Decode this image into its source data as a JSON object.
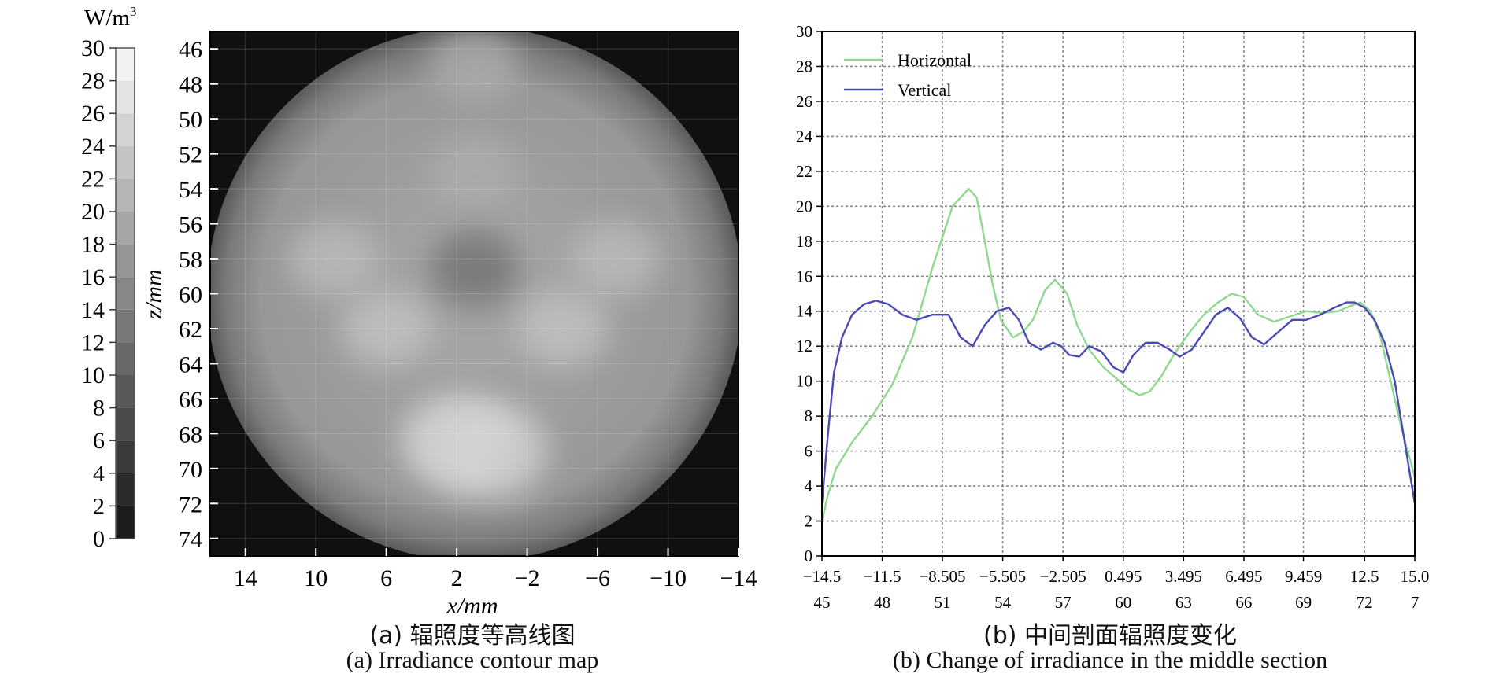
{
  "chart_data": [
    {
      "type": "heatmap",
      "title": "(a) 辐照度等高线图",
      "subtitle": "(a) Irradiance contour map",
      "xlabel": "x/mm",
      "ylabel": "z/mm",
      "xlim": [
        16,
        -14
      ],
      "ylim": [
        45,
        75
      ],
      "x_ticks": [
        14,
        10,
        6,
        2,
        -2,
        -6,
        -10,
        -14
      ],
      "x_tick_labels": [
        "14",
        "10",
        "6",
        "2",
        "−2",
        "−6",
        "−10",
        "−14"
      ],
      "y_ticks": [
        46,
        48,
        50,
        52,
        54,
        56,
        58,
        60,
        62,
        64,
        66,
        68,
        70,
        72,
        74
      ],
      "grid": true,
      "colorbar": {
        "unit_label": "W/m",
        "unit_superscript": "3",
        "range": [
          0,
          30
        ],
        "ticks": [
          0,
          2,
          4,
          6,
          8,
          10,
          12,
          14,
          16,
          18,
          20,
          22,
          24,
          26,
          28,
          30
        ]
      },
      "description_values": {
        "background_level": 1,
        "blobs": [
          {
            "x": 1,
            "z": 60,
            "value": 18
          },
          {
            "x": 1,
            "z": 47,
            "value": 20
          },
          {
            "x": 9,
            "z": 58,
            "value": 22
          },
          {
            "x": -7,
            "z": 58,
            "value": 22
          },
          {
            "x": 6,
            "z": 62,
            "value": 23
          },
          {
            "x": -4,
            "z": 62,
            "value": 23
          },
          {
            "x": 2,
            "z": 68.5,
            "value": 26
          },
          {
            "x": 0,
            "z": 69,
            "value": 25
          },
          {
            "x": 1,
            "z": 53,
            "value": 20
          },
          {
            "x": 1,
            "z": 58.5,
            "value": 12
          }
        ]
      }
    },
    {
      "type": "line",
      "title": "(b) 中间剖面辐照度变化",
      "subtitle": "(b) Change of irradiance in the middle section",
      "xlabel": "",
      "ylabel": "",
      "xlim": [
        -14.5,
        15.0
      ],
      "ylim": [
        0,
        30
      ],
      "y_ticks": [
        0,
        2,
        4,
        6,
        8,
        10,
        12,
        14,
        16,
        18,
        20,
        22,
        24,
        26,
        28,
        30
      ],
      "x_ticks": [
        -14.5,
        -11.5,
        -8.505,
        -5.505,
        -2.505,
        0.495,
        3.495,
        6.495,
        9.459,
        12.5,
        15.0
      ],
      "x_tick_labels": [
        "−14.5",
        "−11.5",
        "−8.505",
        "−5.505",
        "−2.505",
        "0.495",
        "3.495",
        "6.495",
        "9.459",
        "12.5",
        "15.0"
      ],
      "x2_tick_labels": [
        "45",
        "48",
        "51",
        "54",
        "57",
        "60",
        "63",
        "66",
        "69",
        "72",
        "7"
      ],
      "grid": true,
      "legend_position": "top-left",
      "series": [
        {
          "name": "Horizontal",
          "color": "#8fd88f",
          "x": [
            -14.5,
            -14.2,
            -13.8,
            -13.0,
            -12.0,
            -11.0,
            -10.0,
            -9.0,
            -8.0,
            -7.2,
            -6.8,
            -6.4,
            -6.0,
            -5.6,
            -5.0,
            -4.5,
            -4.0,
            -3.4,
            -2.9,
            -2.3,
            -1.8,
            -1.2,
            -0.5,
            0.3,
            0.8,
            1.3,
            1.8,
            2.4,
            3.0,
            3.8,
            4.5,
            5.2,
            5.9,
            6.5,
            7.2,
            8.0,
            8.8,
            9.6,
            10.4,
            11.2,
            11.8,
            12.3,
            12.8,
            13.3,
            13.8,
            14.3,
            15.0
          ],
          "values": [
            2.0,
            3.5,
            5.0,
            6.5,
            8.0,
            9.8,
            12.5,
            16.5,
            20.0,
            21.0,
            20.5,
            18.0,
            15.5,
            13.5,
            12.5,
            12.8,
            13.5,
            15.2,
            15.8,
            15.0,
            13.2,
            11.8,
            10.8,
            10.0,
            9.5,
            9.2,
            9.4,
            10.3,
            11.5,
            12.8,
            13.8,
            14.5,
            15.0,
            14.8,
            13.8,
            13.4,
            13.7,
            14.0,
            13.9,
            14.0,
            14.3,
            14.5,
            14.0,
            12.5,
            10.0,
            7.5,
            4.5
          ]
        },
        {
          "name": "Vertical",
          "color": "#4a4ab4",
          "x": [
            -14.5,
            -14.2,
            -13.9,
            -13.5,
            -13.0,
            -12.4,
            -11.8,
            -11.2,
            -10.5,
            -9.8,
            -9.0,
            -8.2,
            -7.6,
            -7.0,
            -6.4,
            -5.8,
            -5.2,
            -4.7,
            -4.2,
            -3.6,
            -3.0,
            -2.6,
            -2.2,
            -1.7,
            -1.2,
            -0.6,
            0.0,
            0.5,
            1.0,
            1.6,
            2.2,
            2.8,
            3.3,
            3.9,
            4.5,
            5.1,
            5.7,
            6.3,
            6.9,
            7.5,
            8.2,
            8.9,
            9.6,
            10.3,
            11.0,
            11.6,
            12.0,
            12.5,
            13.0,
            13.5,
            14.0,
            14.5,
            15.0
          ],
          "values": [
            3.0,
            7.0,
            10.5,
            12.5,
            13.8,
            14.4,
            14.6,
            14.4,
            13.8,
            13.5,
            13.8,
            13.8,
            12.5,
            12.0,
            13.2,
            14.0,
            14.2,
            13.5,
            12.2,
            11.8,
            12.2,
            12.0,
            11.5,
            11.4,
            12.0,
            11.7,
            10.8,
            10.5,
            11.5,
            12.2,
            12.2,
            11.8,
            11.4,
            11.8,
            12.8,
            13.8,
            14.2,
            13.6,
            12.5,
            12.1,
            12.8,
            13.5,
            13.5,
            13.8,
            14.2,
            14.5,
            14.5,
            14.2,
            13.5,
            12.2,
            10.0,
            6.5,
            3.0
          ]
        }
      ]
    }
  ]
}
